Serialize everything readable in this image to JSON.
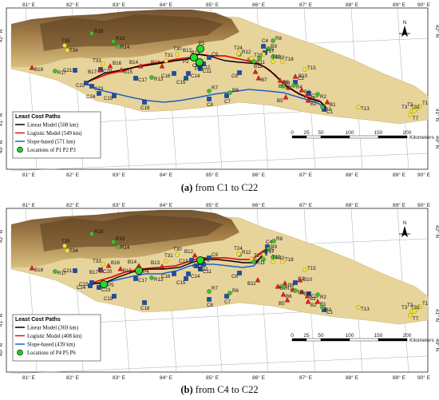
{
  "longitude_labels": [
    "81° E",
    "82° E",
    "83° E",
    "84° E",
    "85° E",
    "86° E",
    "87° E",
    "88° E",
    "89° E",
    "90° E"
  ],
  "latitude_labels": [
    "42° N",
    "41° N",
    "40° N"
  ],
  "scalebar": {
    "ticks": [
      "0",
      "25",
      "50",
      "100",
      "150",
      "200"
    ],
    "unit": "Kilometers"
  },
  "north_arrow": "N",
  "panels": [
    {
      "id": "a",
      "caption_letter": "(a)",
      "caption_text": "from C1 to C22",
      "legend": {
        "title": "Least Cost Paths",
        "items": [
          {
            "label": "Linear Model (508 km)",
            "color": "#000000"
          },
          {
            "label": "Logistic Model (549 km)",
            "color": "#e01010"
          },
          {
            "label": "Slope-based (571 km)",
            "color": "#1f5fd0"
          },
          {
            "label": "Locations of P1 P2 P3",
            "color": "#22cc22"
          }
        ]
      },
      "points": [
        "C1",
        "C2",
        "C3",
        "C4",
        "C5",
        "C6",
        "C7",
        "C8",
        "C9",
        "C10",
        "C11",
        "C12",
        "C13",
        "C14",
        "C15",
        "C16",
        "C17",
        "C18",
        "C19",
        "C20",
        "C21",
        "C22",
        "C23",
        "C24",
        "B1",
        "B2",
        "B3",
        "B4",
        "B5",
        "B6",
        "B7",
        "B8",
        "B9",
        "B10",
        "B11",
        "B12",
        "B13",
        "B14",
        "B15",
        "B16",
        "B17",
        "B18",
        "R1",
        "R2",
        "R3",
        "R4",
        "R5",
        "R6",
        "R7",
        "R8",
        "R9",
        "R10",
        "R11",
        "R12",
        "R13",
        "R14",
        "R15",
        "R16",
        "R17",
        "T1",
        "T2",
        "T3",
        "T7",
        "T13",
        "T15",
        "T17",
        "T18",
        "T19",
        "T20",
        "T24",
        "T30",
        "T31",
        "T32",
        "T33",
        "T34",
        "T35",
        "P1",
        "P2",
        "P3"
      ]
    },
    {
      "id": "b",
      "caption_letter": "(b)",
      "caption_text": "from C4 to C22",
      "legend": {
        "title": "Least Cost Paths",
        "items": [
          {
            "label": "Linear Model (369 km)",
            "color": "#000000"
          },
          {
            "label": "Logistic Model (408 km)",
            "color": "#e01010"
          },
          {
            "label": "Slope-based (439 km)",
            "color": "#1f5fd0"
          },
          {
            "label": "Locations of P4 P5 P6",
            "color": "#22cc22"
          }
        ]
      },
      "points": [
        "C1",
        "C2",
        "C3",
        "C4",
        "C5",
        "C6",
        "C7",
        "C8",
        "C9",
        "C10",
        "C11",
        "C12",
        "C13",
        "C14",
        "C15",
        "C16",
        "C17",
        "C18",
        "C19",
        "C20",
        "C21",
        "C22",
        "C23",
        "C24",
        "B1",
        "B2",
        "B3",
        "B4",
        "B5",
        "B6",
        "B7",
        "B8",
        "B9",
        "B10",
        "B11",
        "B12",
        "B13",
        "B14",
        "B15",
        "B16",
        "B17",
        "B18",
        "R1",
        "R2",
        "R3",
        "R4",
        "R5",
        "R6",
        "R7",
        "R8",
        "R9",
        "R10",
        "R11",
        "R12",
        "R13",
        "R14",
        "R15",
        "R16",
        "R17",
        "T1",
        "T2",
        "T3",
        "T7",
        "T13",
        "T15",
        "T17",
        "T18",
        "T19",
        "T20",
        "T24",
        "T30",
        "T31",
        "T32",
        "T33",
        "T34",
        "T35",
        "P4",
        "P5",
        "P6"
      ]
    }
  ]
}
